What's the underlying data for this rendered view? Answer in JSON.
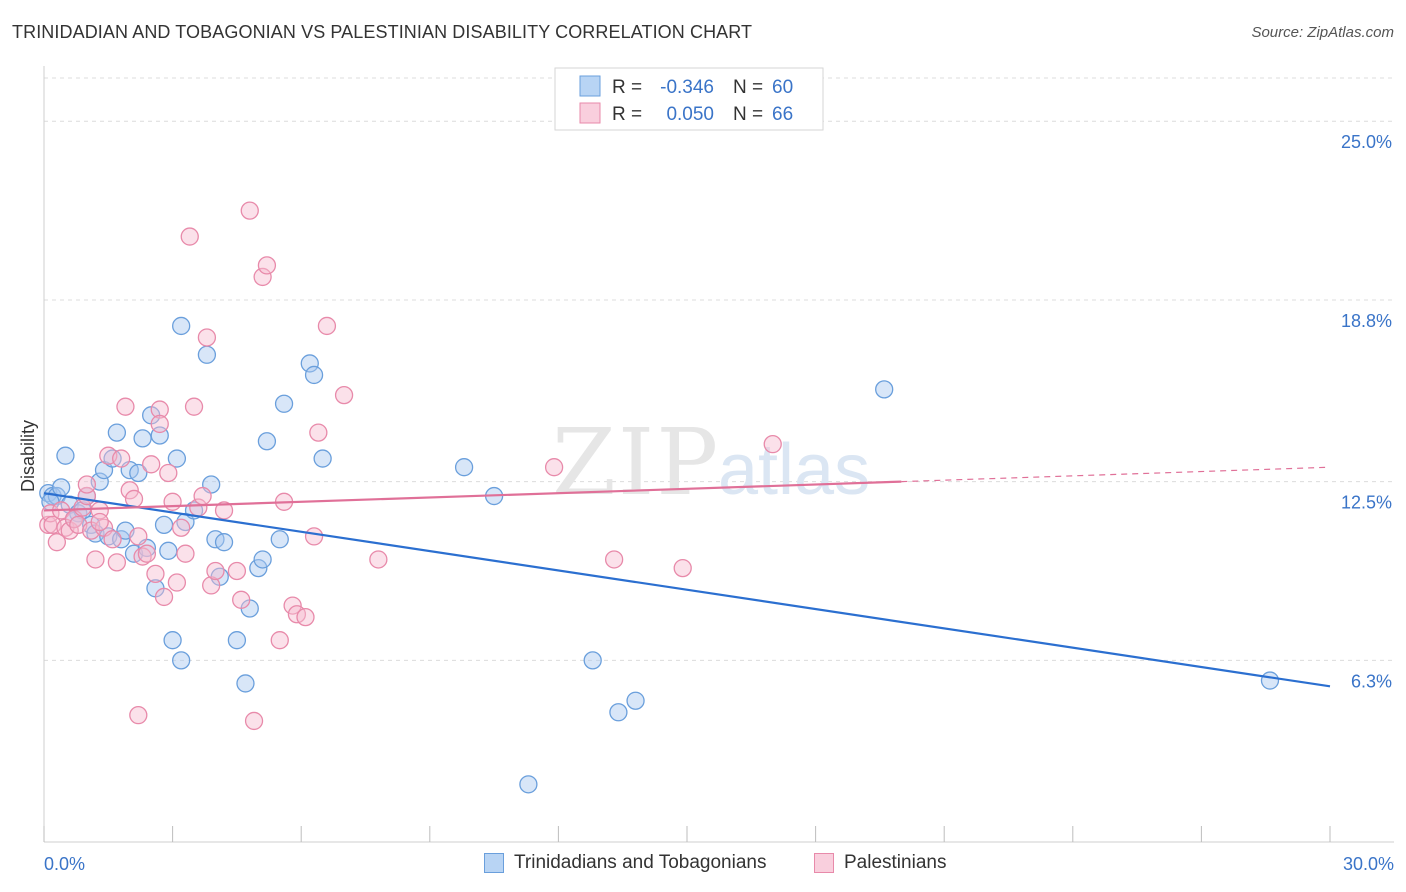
{
  "header": {
    "title": "TRINIDADIAN AND TOBAGONIAN VS PALESTINIAN DISABILITY CORRELATION CHART",
    "source": "Source: ZipAtlas.com"
  },
  "watermark": {
    "part1": "ZIP",
    "part2": "atlas"
  },
  "colors": {
    "blue_fill": "#a8c8f0",
    "blue_stroke": "#6a9fdc",
    "blue_line": "#2b6fd0",
    "pink_fill": "#f6bcd0",
    "pink_stroke": "#e88aaa",
    "pink_line": "#e07098",
    "axis_text": "#3a74c8"
  },
  "chart_data": {
    "type": "scatter",
    "title": "TRINIDADIAN AND TOBAGONIAN VS PALESTINIAN DISABILITY CORRELATION CHART",
    "xlabel": "",
    "ylabel": "Disability",
    "xlim": [
      0,
      30
    ],
    "ylim": [
      0,
      26.5
    ],
    "x_tick_labels": [
      "0.0%",
      "30.0%"
    ],
    "y_ticks": [
      6.3,
      12.5,
      18.8,
      25.0
    ],
    "y_tick_labels": [
      "6.3%",
      "12.5%",
      "18.8%",
      "25.0%"
    ],
    "grid": true,
    "legend": {
      "placement": "top-center",
      "entries": [
        {
          "r_label": "R =",
          "r_value": "-0.346",
          "n_label": "N =",
          "n_value": "60"
        },
        {
          "r_label": "R =",
          "r_value": "0.050",
          "n_label": "N =",
          "n_value": "66"
        }
      ]
    },
    "series": [
      {
        "name": "Trinidadians and Tobagonians",
        "color": "blue",
        "trend": {
          "x0": 0,
          "y0": 12.1,
          "x1": 30,
          "y1": 5.4,
          "dashed_from": null
        },
        "points": [
          [
            0.1,
            12.1
          ],
          [
            0.2,
            12.0
          ],
          [
            0.3,
            12.0
          ],
          [
            0.4,
            12.3
          ],
          [
            0.5,
            13.4
          ],
          [
            0.6,
            11.7
          ],
          [
            0.8,
            11.4
          ],
          [
            0.9,
            11.5
          ],
          [
            1.0,
            12.0
          ],
          [
            1.1,
            11.0
          ],
          [
            1.2,
            10.7
          ],
          [
            1.3,
            12.5
          ],
          [
            1.4,
            12.9
          ],
          [
            1.5,
            10.6
          ],
          [
            1.6,
            13.3
          ],
          [
            1.7,
            14.2
          ],
          [
            1.8,
            10.5
          ],
          [
            1.9,
            10.8
          ],
          [
            2.0,
            12.9
          ],
          [
            2.1,
            10.0
          ],
          [
            2.3,
            14.0
          ],
          [
            2.4,
            10.2
          ],
          [
            2.5,
            14.8
          ],
          [
            2.6,
            8.8
          ],
          [
            2.7,
            14.1
          ],
          [
            2.8,
            11.0
          ],
          [
            2.9,
            10.1
          ],
          [
            3.0,
            7.0
          ],
          [
            3.1,
            13.3
          ],
          [
            3.2,
            6.3
          ],
          [
            3.2,
            17.9
          ],
          [
            3.3,
            11.1
          ],
          [
            3.5,
            11.5
          ],
          [
            3.8,
            16.9
          ],
          [
            3.9,
            12.4
          ],
          [
            4.0,
            10.5
          ],
          [
            4.1,
            9.2
          ],
          [
            4.2,
            10.4
          ],
          [
            4.5,
            7.0
          ],
          [
            4.7,
            5.5
          ],
          [
            4.8,
            8.1
          ],
          [
            5.0,
            9.5
          ],
          [
            5.1,
            9.8
          ],
          [
            5.2,
            13.9
          ],
          [
            5.5,
            10.5
          ],
          [
            5.6,
            15.2
          ],
          [
            6.2,
            16.6
          ],
          [
            6.3,
            16.2
          ],
          [
            6.5,
            13.3
          ],
          [
            9.8,
            13.0
          ],
          [
            10.5,
            12.0
          ],
          [
            11.3,
            2.0
          ],
          [
            12.8,
            6.3
          ],
          [
            13.4,
            4.5
          ],
          [
            13.8,
            4.9
          ],
          [
            19.6,
            15.7
          ],
          [
            28.6,
            5.6
          ],
          [
            0.15,
            11.8
          ],
          [
            0.7,
            11.2
          ],
          [
            2.2,
            12.8
          ]
        ]
      },
      {
        "name": "Palestinians",
        "color": "pink",
        "trend": {
          "x0": 0,
          "y0": 11.5,
          "x1": 30,
          "y1": 13.0,
          "dashed_from": 20.0
        },
        "points": [
          [
            0.1,
            11.0
          ],
          [
            0.15,
            11.4
          ],
          [
            0.2,
            11.0
          ],
          [
            0.3,
            10.4
          ],
          [
            0.4,
            11.5
          ],
          [
            0.5,
            10.9
          ],
          [
            0.6,
            10.8
          ],
          [
            0.7,
            11.2
          ],
          [
            0.8,
            11.0
          ],
          [
            0.9,
            11.6
          ],
          [
            1.0,
            12.0
          ],
          [
            1.0,
            12.4
          ],
          [
            1.1,
            10.8
          ],
          [
            1.2,
            9.8
          ],
          [
            1.3,
            11.5
          ],
          [
            1.4,
            10.9
          ],
          [
            1.5,
            13.4
          ],
          [
            1.6,
            10.5
          ],
          [
            1.7,
            9.7
          ],
          [
            1.8,
            13.3
          ],
          [
            1.9,
            15.1
          ],
          [
            2.0,
            12.2
          ],
          [
            2.1,
            11.9
          ],
          [
            2.2,
            10.6
          ],
          [
            2.3,
            9.9
          ],
          [
            2.4,
            10.0
          ],
          [
            2.5,
            13.1
          ],
          [
            2.6,
            9.3
          ],
          [
            2.7,
            15.0
          ],
          [
            2.7,
            14.5
          ],
          [
            2.8,
            8.5
          ],
          [
            2.9,
            12.8
          ],
          [
            3.0,
            11.8
          ],
          [
            3.1,
            9.0
          ],
          [
            3.2,
            10.9
          ],
          [
            3.3,
            10.0
          ],
          [
            3.4,
            21.0
          ],
          [
            3.5,
            15.1
          ],
          [
            3.6,
            11.6
          ],
          [
            3.7,
            12.0
          ],
          [
            3.8,
            17.5
          ],
          [
            3.9,
            8.9
          ],
          [
            4.0,
            9.4
          ],
          [
            4.2,
            11.5
          ],
          [
            4.5,
            9.4
          ],
          [
            4.6,
            8.4
          ],
          [
            4.8,
            21.9
          ],
          [
            4.9,
            4.2
          ],
          [
            5.1,
            19.6
          ],
          [
            5.2,
            20.0
          ],
          [
            5.5,
            7.0
          ],
          [
            5.6,
            11.8
          ],
          [
            5.8,
            8.2
          ],
          [
            5.9,
            7.9
          ],
          [
            6.1,
            7.8
          ],
          [
            6.3,
            10.6
          ],
          [
            6.4,
            14.2
          ],
          [
            6.6,
            17.9
          ],
          [
            7.0,
            15.5
          ],
          [
            7.8,
            9.8
          ],
          [
            11.9,
            13.0
          ],
          [
            13.3,
            9.8
          ],
          [
            14.9,
            9.5
          ],
          [
            17.0,
            13.8
          ],
          [
            2.2,
            4.4
          ],
          [
            1.3,
            11.1
          ]
        ]
      }
    ]
  },
  "bottom_legend": {
    "items": [
      {
        "label": "Trinidadians and Tobagonians"
      },
      {
        "label": "Palestinians"
      }
    ]
  }
}
